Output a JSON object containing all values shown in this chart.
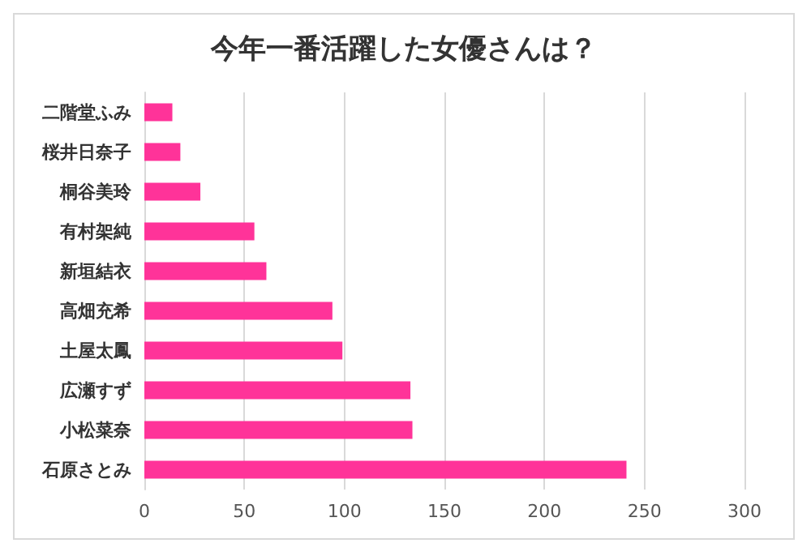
{
  "chart_data": {
    "type": "bar",
    "orientation": "horizontal",
    "title": "今年一番活躍した女優さんは？",
    "categories": [
      "二階堂ふみ",
      "桜井日奈子",
      "桐谷美玲",
      "有村架純",
      "新垣結衣",
      "高畑充希",
      "土屋太鳳",
      "広瀬すず",
      "小松菜奈",
      "石原さとみ"
    ],
    "values": [
      14,
      18,
      28,
      55,
      61,
      94,
      99,
      133,
      134,
      241
    ],
    "color": "#ff3399",
    "xlim": [
      0,
      300
    ],
    "xticks": [
      0,
      50,
      100,
      150,
      200,
      250,
      300
    ],
    "grid": "x"
  }
}
